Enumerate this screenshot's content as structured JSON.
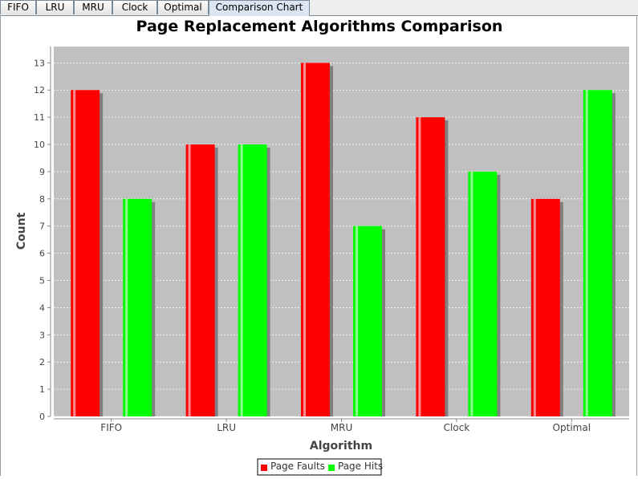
{
  "tabs": [
    {
      "label": "FIFO",
      "active": false
    },
    {
      "label": "LRU",
      "active": false
    },
    {
      "label": "MRU",
      "active": false
    },
    {
      "label": "Clock",
      "active": false
    },
    {
      "label": "Optimal",
      "active": false
    },
    {
      "label": "Comparison Chart",
      "active": true
    }
  ],
  "chart_data": {
    "type": "bar",
    "title": "Page Replacement Algorithms Comparison",
    "xlabel": "Algorithm",
    "ylabel": "Count",
    "categories": [
      "FIFO",
      "LRU",
      "MRU",
      "Clock",
      "Optimal"
    ],
    "series": [
      {
        "name": "Page Faults",
        "color": "#ff0000",
        "values": [
          12,
          10,
          13,
          11,
          8
        ]
      },
      {
        "name": "Page Hits",
        "color": "#00ff00",
        "values": [
          8,
          10,
          7,
          9,
          12
        ]
      }
    ],
    "ylim": [
      0,
      13.6
    ],
    "yticks": [
      "0",
      "1",
      "2",
      "3",
      "4",
      "5",
      "6",
      "7",
      "8",
      "9",
      "10",
      "11",
      "12",
      "13"
    ],
    "grid": true,
    "legend": "bottom-center",
    "plot_background": "#c0c0c0"
  }
}
